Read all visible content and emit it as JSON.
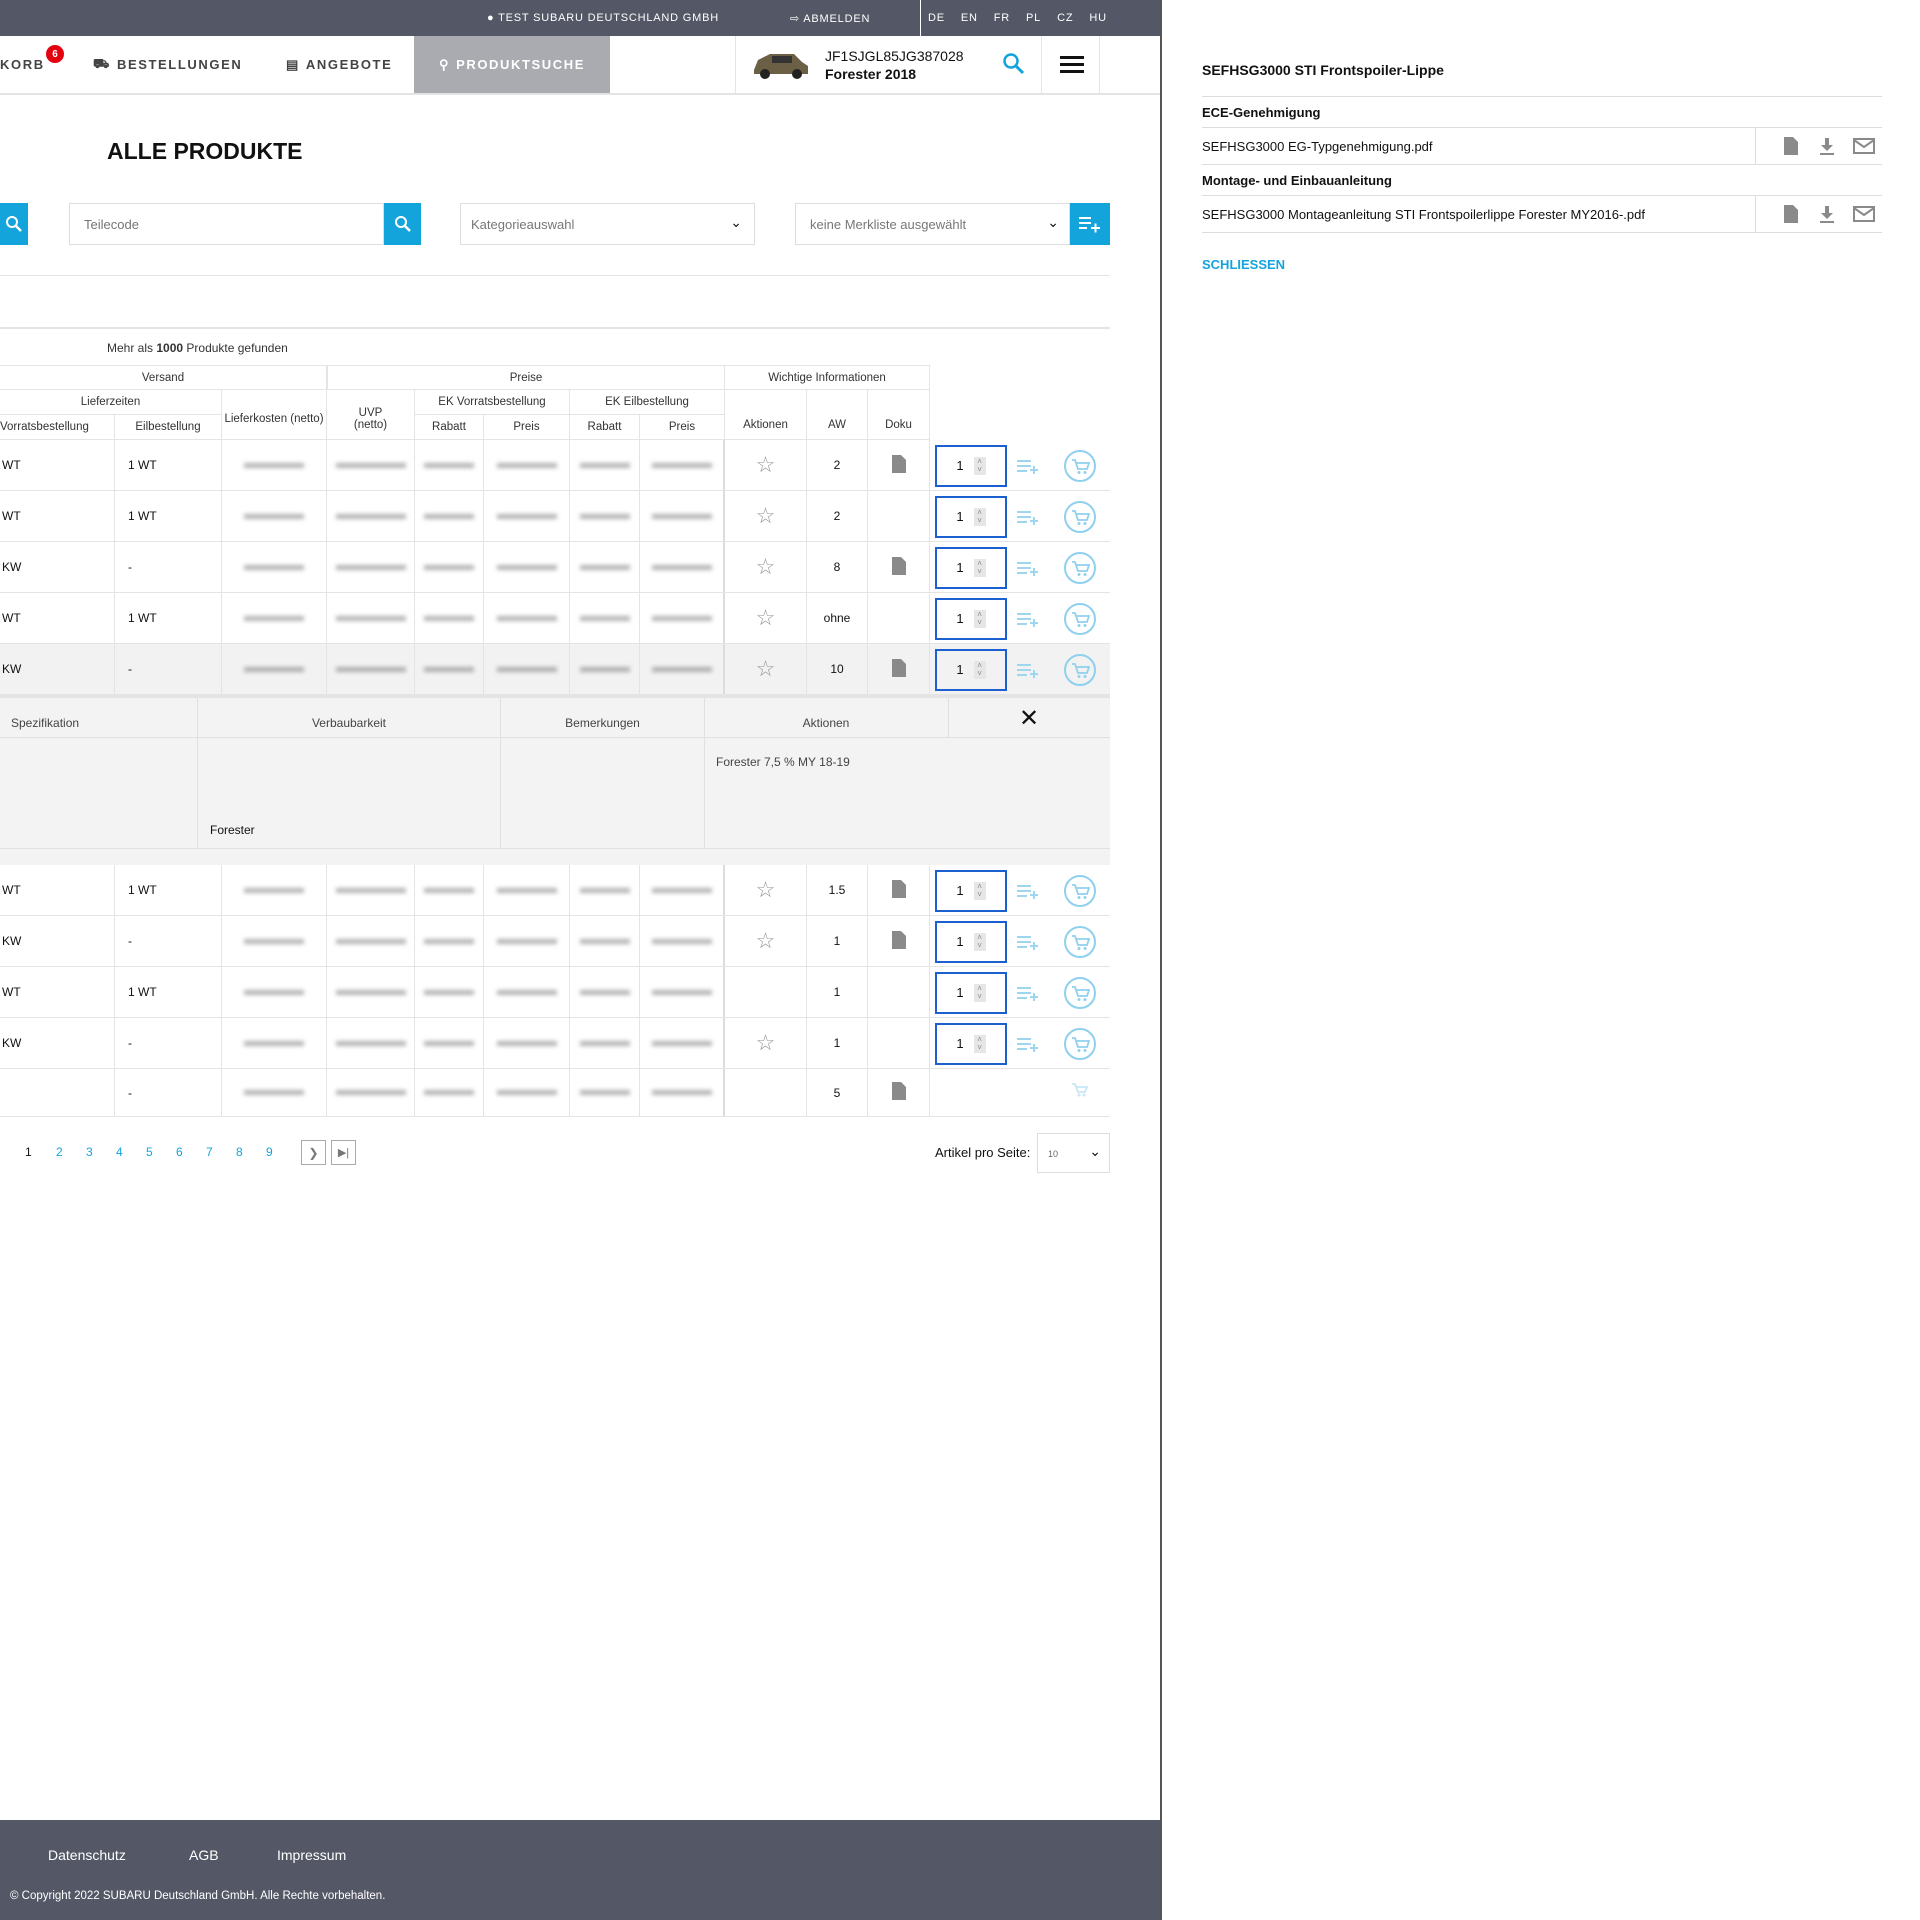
{
  "topbar": {
    "user": "TEST SUBARU DEUTSCHLAND GMBH",
    "logout": "ABMELDEN",
    "languages": [
      "DE",
      "EN",
      "FR",
      "PL",
      "CZ",
      "HU"
    ]
  },
  "nav": {
    "cart": "KORB",
    "cart_badge": "6",
    "orders": "BESTELLUNGEN",
    "offers": "ANGEBOTE",
    "search": "PRODUKTSUCHE",
    "vin": "JF1SJGL85JG387028",
    "model": "Forester 2018"
  },
  "page": {
    "title": "ALLE PRODUKTE",
    "teilecode_placeholder": "Teilecode",
    "category": "Kategorieauswahl",
    "watchlist": "keine Merkliste ausgewählt",
    "results_prefix": "Mehr als ",
    "results_count": "1000",
    "results_suffix": " Produkte gefunden"
  },
  "table": {
    "group_headers": {
      "versand": "Versand",
      "preise": "Preise",
      "info": "Wichtige Informationen"
    },
    "sub_headers": {
      "lieferzeiten": "Lieferzeiten",
      "lieferkosten": "Lieferkosten (netto)",
      "uvp": "UVP (netto)",
      "ekv": "EK Vorratsbestellung",
      "eke": "EK Eilbestellung"
    },
    "columns": {
      "vorrat": "Vorratsbestellung",
      "eil": "Eilbestellung",
      "rabatt1": "Rabatt",
      "preis1": "Preis",
      "rabatt2": "Rabatt",
      "preis2": "Preis",
      "aktionen": "Aktionen",
      "aw": "AW",
      "doku": "Doku"
    },
    "rows_top": [
      {
        "vorrat": "WT",
        "eil": "1 WT",
        "star": true,
        "aw": "2",
        "doc": true,
        "qty": "1"
      },
      {
        "vorrat": "WT",
        "eil": "1 WT",
        "star": true,
        "aw": "2",
        "doc": false,
        "qty": "1"
      },
      {
        "vorrat": "KW",
        "eil": "-",
        "star": true,
        "aw": "8",
        "doc": true,
        "qty": "1"
      },
      {
        "vorrat": "WT",
        "eil": "1 WT",
        "star": true,
        "aw": "ohne",
        "doc": false,
        "qty": "1"
      },
      {
        "vorrat": "KW",
        "eil": "-",
        "star": true,
        "aw": "10",
        "doc": true,
        "qty": "1",
        "selected": true
      }
    ],
    "detail": {
      "headers": [
        "Spezifikation",
        "Verbaubarkeit",
        "Bemerkungen",
        "Aktionen"
      ],
      "verbaubarkeit": "Forester",
      "aktionen": "Forester 7,5 % MY 18-19"
    },
    "rows_bottom": [
      {
        "vorrat": "WT",
        "eil": "1 WT",
        "star": true,
        "aw": "1.5",
        "doc": true,
        "qty": "1"
      },
      {
        "vorrat": "KW",
        "eil": "-",
        "star": true,
        "aw": "1",
        "doc": true,
        "qty": "1"
      },
      {
        "vorrat": "WT",
        "eil": "1 WT",
        "star": false,
        "aw": "1",
        "doc": false,
        "qty": "1"
      },
      {
        "vorrat": "KW",
        "eil": "-",
        "star": true,
        "aw": "1",
        "doc": false,
        "qty": "1"
      },
      {
        "vorrat": "",
        "eil": "-",
        "star": false,
        "aw": "5",
        "doc": true,
        "qty": null
      }
    ]
  },
  "pagination": {
    "current": "1",
    "pages": [
      "2",
      "3",
      "4",
      "5",
      "6",
      "7",
      "8",
      "9"
    ],
    "per_page_label": "Artikel pro Seite:",
    "per_page": "10"
  },
  "panel": {
    "title": "SEFHSG3000 STI Frontspoiler-Lippe",
    "section1": "ECE-Genehmigung",
    "file1": "SEFHSG3000 EG-Typgenehmigung.pdf",
    "section2": "Montage- und Einbauanleitung",
    "file2": "SEFHSG3000 Montageanleitung STI Frontspoilerlippe Forester MY2016-.pdf",
    "close": "SCHLIESSEN"
  },
  "footer": {
    "links": [
      "Datenschutz",
      "AGB",
      "Impressum"
    ],
    "copyright": "© Copyright 2022 SUBARU Deutschland GmbH. Alle Rechte vorbehalten."
  },
  "colors": {
    "accent": "#13a4dc",
    "topbar": "#545866",
    "badge": "#e3000f",
    "qty_border": "#1b5fd1"
  }
}
